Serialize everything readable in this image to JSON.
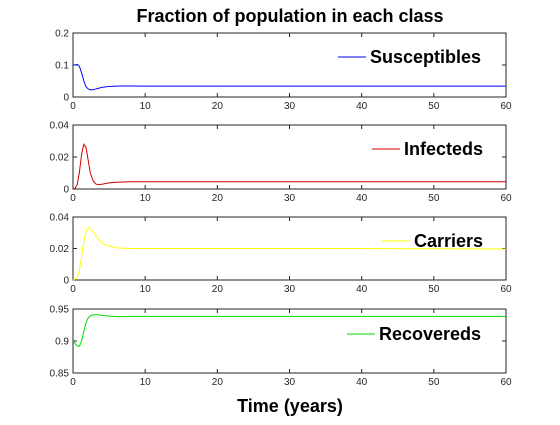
{
  "chart_data": {
    "type": "line",
    "title": "Fraction of population in each class",
    "xlabel": "Time (years)",
    "grid": false,
    "subplots": [
      {
        "legend_placement": "top-right",
        "series": [
          {
            "name": "Susceptibles",
            "color": "#0000ff",
            "x": [
              0,
              0.3,
              0.6,
              0.9,
              1.2,
              1.5,
              1.8,
              2.1,
              2.5,
              3,
              3.5,
              4,
              5,
              6,
              7,
              8,
              10,
              15,
              20,
              30,
              40,
              50,
              60
            ],
            "y": [
              0.1,
              0.1,
              0.102,
              0.095,
              0.075,
              0.05,
              0.032,
              0.025,
              0.022,
              0.024,
              0.027,
              0.03,
              0.033,
              0.034,
              0.0345,
              0.0345,
              0.034,
              0.034,
              0.034,
              0.034,
              0.034,
              0.034,
              0.034
            ]
          }
        ],
        "xlim": [
          0,
          60
        ],
        "ylim": [
          0,
          0.2
        ],
        "xticks": [
          0,
          10,
          20,
          30,
          40,
          50,
          60
        ],
        "yticks": [
          0,
          0.1,
          0.2
        ],
        "xtick_labels": [
          "0",
          "10",
          "20",
          "30",
          "40",
          "50",
          "60"
        ],
        "ytick_labels": [
          "0",
          "0.1",
          "0.2"
        ]
      },
      {
        "legend_placement": "top-right",
        "series": [
          {
            "name": "Infecteds",
            "color": "#cc0000",
            "x": [
              0,
              0.3,
              0.6,
              0.9,
              1.2,
              1.5,
              1.8,
              2.1,
              2.4,
              2.8,
              3.2,
              3.6,
              4,
              5,
              6,
              7,
              8,
              10,
              15,
              20,
              30,
              40,
              50,
              60
            ],
            "y": [
              0,
              0.0005,
              0.003,
              0.011,
              0.022,
              0.028,
              0.026,
              0.018,
              0.01,
              0.005,
              0.003,
              0.0028,
              0.003,
              0.0038,
              0.0042,
              0.0044,
              0.0045,
              0.0045,
              0.0045,
              0.0045,
              0.0045,
              0.0045,
              0.0045,
              0.0045
            ]
          }
        ],
        "xlim": [
          0,
          60
        ],
        "ylim": [
          0,
          0.04
        ],
        "xticks": [
          0,
          10,
          20,
          30,
          40,
          50,
          60
        ],
        "yticks": [
          0,
          0.02,
          0.04
        ],
        "xtick_labels": [
          "0",
          "10",
          "20",
          "30",
          "40",
          "50",
          "60"
        ],
        "ytick_labels": [
          "0",
          "0.02",
          "0.04"
        ]
      },
      {
        "legend_placement": "top-right",
        "series": [
          {
            "name": "Carriers",
            "color": "#ffff00",
            "x": [
              0,
              0.5,
              0.8,
              1.1,
              1.4,
              1.7,
              2.0,
              2.3,
              2.7,
              3.2,
              3.7,
              4.2,
              5,
              6,
              7,
              8,
              10,
              15,
              20,
              30,
              40,
              50,
              60
            ],
            "y": [
              0,
              0.001,
              0.004,
              0.012,
              0.022,
              0.029,
              0.033,
              0.033,
              0.031,
              0.028,
              0.025,
              0.023,
              0.0215,
              0.0205,
              0.0202,
              0.02,
              0.02,
              0.02,
              0.02,
              0.02,
              0.02,
              0.0198,
              0.0197
            ]
          }
        ],
        "xlim": [
          0,
          60
        ],
        "ylim": [
          0,
          0.04
        ],
        "xticks": [
          0,
          10,
          20,
          30,
          40,
          50,
          60
        ],
        "yticks": [
          0,
          0.02,
          0.04
        ],
        "xtick_labels": [
          "0",
          "10",
          "20",
          "30",
          "40",
          "50",
          "60"
        ],
        "ytick_labels": [
          "0",
          "0.02",
          "0.04"
        ]
      },
      {
        "legend_placement": "top-right",
        "series": [
          {
            "name": "Recovereds",
            "color": "#00dd00",
            "x": [
              0,
              0.3,
              0.6,
              0.9,
              1.2,
              1.5,
              1.8,
              2.1,
              2.5,
              3,
              3.5,
              4,
              5,
              6,
              7,
              8,
              10,
              15,
              20,
              30,
              40,
              50,
              60
            ],
            "y": [
              0.9,
              0.896,
              0.892,
              0.892,
              0.9,
              0.915,
              0.928,
              0.936,
              0.94,
              0.941,
              0.941,
              0.94,
              0.939,
              0.938,
              0.938,
              0.9385,
              0.9385,
              0.9385,
              0.9385,
              0.9385,
              0.9385,
              0.9385,
              0.9385
            ]
          }
        ],
        "xlim": [
          0,
          60
        ],
        "ylim": [
          0.85,
          0.95
        ],
        "xticks": [
          0,
          10,
          20,
          30,
          40,
          50,
          60
        ],
        "yticks": [
          0.85,
          0.9,
          0.95
        ],
        "xtick_labels": [
          "0",
          "10",
          "20",
          "30",
          "40",
          "50",
          "60"
        ],
        "ytick_labels": [
          "0.85",
          "0.9",
          "0.95"
        ]
      }
    ]
  }
}
